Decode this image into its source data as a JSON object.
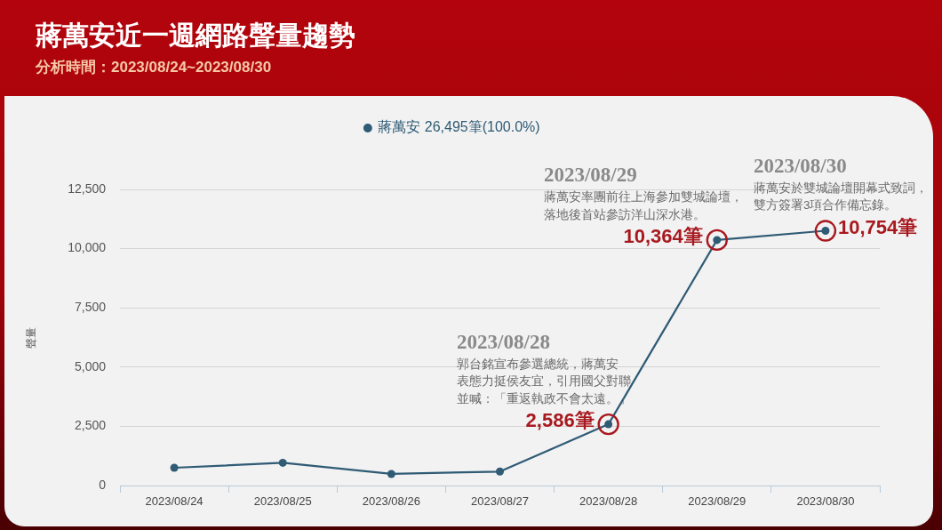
{
  "chart_data": {
    "type": "line",
    "title": "蔣萬安近一週網路聲量趨勢",
    "subtitle": "分析時間：2023/08/24~2023/08/30",
    "ylabel": "聲量",
    "categories": [
      "2023/08/24",
      "2023/08/25",
      "2023/08/26",
      "2023/08/27",
      "2023/08/28",
      "2023/08/29",
      "2023/08/30"
    ],
    "series": [
      {
        "name": "蔣萬安 26,495筆(100.0%)",
        "color": "#2f5b75",
        "values": [
          750,
          960,
          490,
          590,
          2586,
          10364,
          10754
        ],
        "value_labels": [
          null,
          null,
          null,
          null,
          "2,586筆",
          "10,364筆",
          "10,754筆"
        ]
      }
    ],
    "ylim": [
      0,
      12500
    ],
    "yticks": [
      0,
      {
        "value": 2500,
        "label": "2,500"
      },
      {
        "value": 5000,
        "label": "5,000"
      },
      {
        "value": 7500,
        "label": "7,500"
      },
      {
        "value": 10000,
        "label": "10,000"
      },
      {
        "value": 12500,
        "label": "12,500"
      }
    ],
    "grid": "y",
    "legend": "top",
    "marker": "circle",
    "line_style": "solid",
    "annotations": [
      {
        "text": "2023/08/28\n郭台銘宣布參選總統，蔣萬安表態力挺侯友宜，引用國父對聯並喊：「重返執政不會太遠。」",
        "x": "2023/08/28",
        "y": 2586
      },
      {
        "text": "2023/08/29\n蔣萬安率團前往上海參加雙城論壇，落地後首站參訪洋山深水港。",
        "x": "2023/08/29",
        "y": 10364
      },
      {
        "text": "2023/08/30\n蔣萬安於雙城論壇開幕式致詞，雙方簽署3項合作備忘錄。",
        "x": "2023/08/30",
        "y": 10754
      }
    ]
  }
}
